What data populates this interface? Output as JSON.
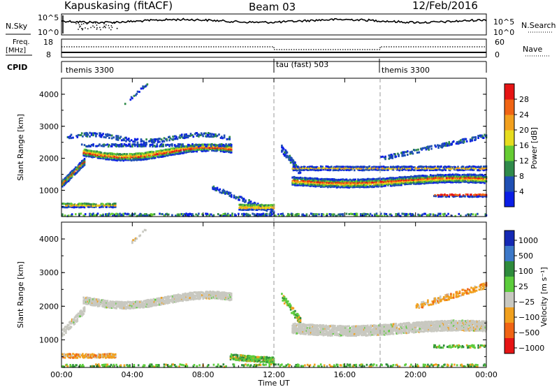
{
  "header": {
    "station": "Kapuskasing (fitACF)",
    "beam": "Beam 03",
    "date": "12/Feb/2016"
  },
  "top_panel": {
    "left_label": "N.Sky",
    "right_label": "N.Search",
    "left_ticks": [
      "10^5",
      "10^0"
    ],
    "right_ticks": [
      "10^5",
      "10^0"
    ]
  },
  "freq_panel": {
    "left_label_1": "Freq.",
    "left_label_2": "[MHz]",
    "left_ticks": [
      "18",
      "8"
    ],
    "right_label": "Nave",
    "right_ticks": [
      "60",
      "0"
    ]
  },
  "cpid": {
    "label": "CPID",
    "segments": [
      {
        "name": "themis 3300",
        "start_hour": 0
      },
      {
        "name": "tau (fast) 503",
        "start_hour": 12
      },
      {
        "name": "themis 3300",
        "start_hour": 18
      }
    ]
  },
  "chart_data": [
    {
      "type": "heatmap",
      "title": "",
      "ylabel": "Slant Range [km]",
      "xlabel": "",
      "xlim": [
        0,
        24
      ],
      "ylim": [
        180,
        4500
      ],
      "yticks": [
        "1000",
        "2000",
        "3000",
        "4000"
      ],
      "colorbar": {
        "label": "Power [dB]",
        "ticks": [
          "4",
          "8",
          "12",
          "16",
          "20",
          "24",
          "28"
        ],
        "colors": [
          "#0a1ee6",
          "#1f4fb4",
          "#2f8a4a",
          "#66cc33",
          "#e6dc1e",
          "#f2a01e",
          "#f06414",
          "#e61414"
        ]
      }
    },
    {
      "type": "heatmap",
      "title": "",
      "ylabel": "Slant Range [km]",
      "xlabel": "Time UT",
      "xlim": [
        0,
        24
      ],
      "ylim": [
        180,
        4500
      ],
      "yticks": [
        "1000",
        "2000",
        "3000",
        "4000"
      ],
      "xticks": [
        "00:00",
        "04:00",
        "08:00",
        "12:00",
        "16:00",
        "20:00",
        "00:00"
      ],
      "colorbar": {
        "label": "Velocity [m s⁻¹]",
        "ticks": [
          "1000",
          "500",
          "100",
          "25",
          "−25",
          "−100",
          "−500",
          "−1000"
        ],
        "colors": [
          "#1428b4",
          "#3c78c8",
          "#2e8b3c",
          "#5ccc3c",
          "#c8c8c0",
          "#f0a01e",
          "#f06414",
          "#e61414"
        ]
      }
    }
  ]
}
